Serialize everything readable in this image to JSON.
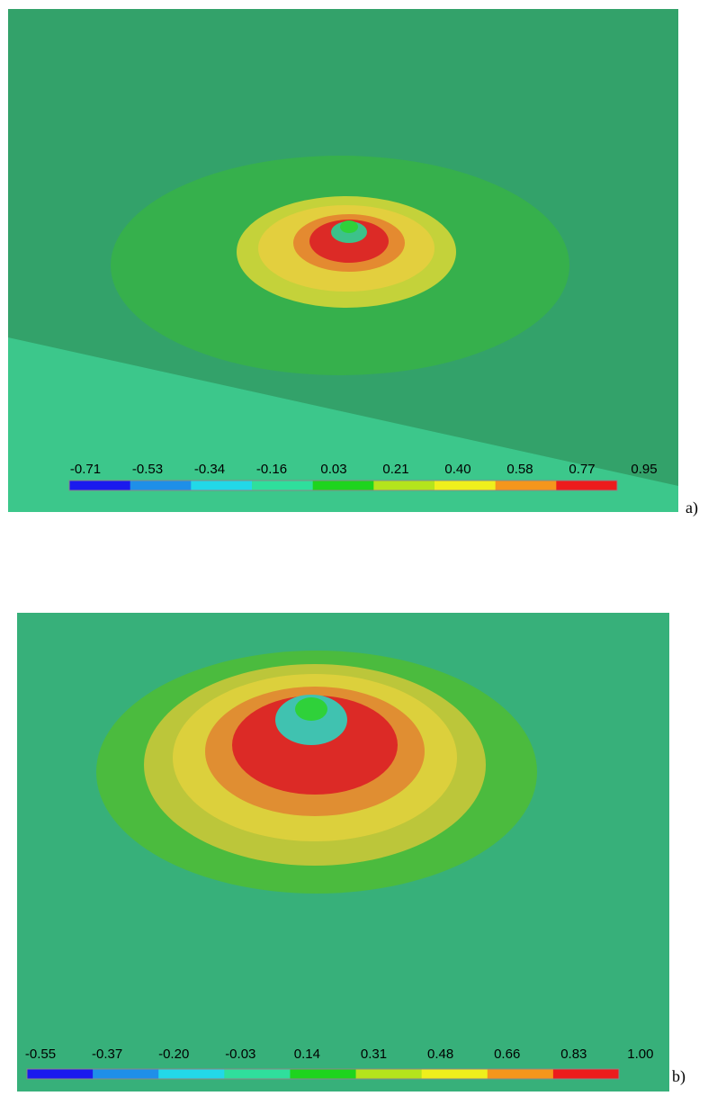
{
  "panels": [
    {
      "label": "a)",
      "colorbar": {
        "ticks": [
          -0.71,
          -0.53,
          -0.34,
          -0.16,
          0.03,
          0.21,
          {
            "value": 0.4,
            "label": "0.40"
          },
          0.58,
          0.77,
          0.95
        ],
        "colors": [
          "#1a1aee",
          "#1f8fe8",
          "#22d8e8",
          "#2fdf9c",
          "#1ed41e",
          "#b4e41c",
          "#efef1c",
          "#f5961c",
          "#ec1c1c"
        ]
      }
    },
    {
      "label": "b)",
      "colorbar": {
        "ticks": [
          -0.55,
          -0.37,
          {
            "value": -0.2,
            "label": "-0.20"
          },
          -0.03,
          0.14,
          0.31,
          0.48,
          0.66,
          0.83,
          {
            "value": 1,
            "label": "1.00"
          }
        ],
        "colors": [
          "#1a1aee",
          "#1f8fe8",
          "#22d8e8",
          "#2fdf9c",
          "#1ed41e",
          "#b4e41c",
          "#efef1c",
          "#f5961c",
          "#ec1c1c"
        ]
      }
    }
  ]
}
